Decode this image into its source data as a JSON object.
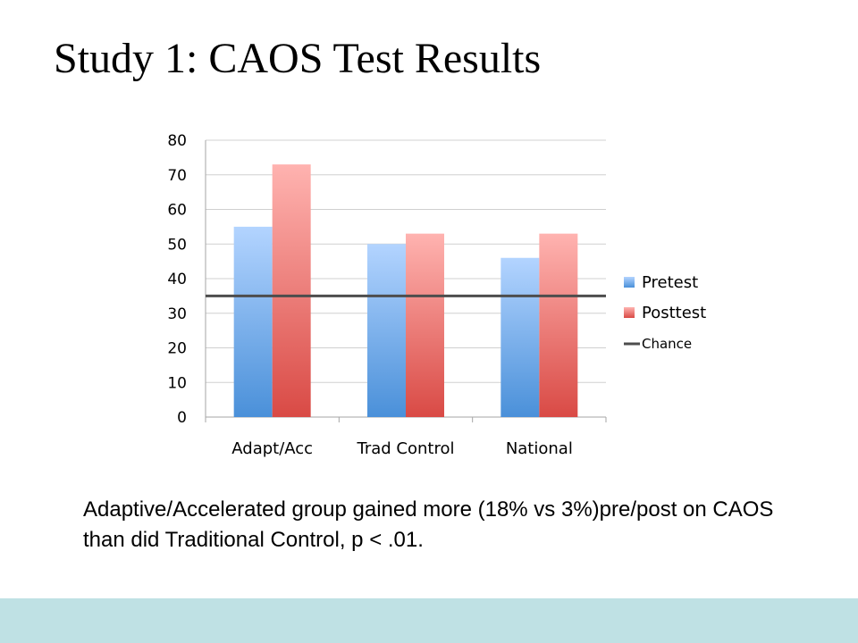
{
  "slide": {
    "title": "Study 1: CAOS Test Results",
    "caption": "Adaptive/Accelerated group gained more (18% vs 3%)pre/post on CAOS than did Traditional Control, p < .01.",
    "footer_color": "#bfe1e4"
  },
  "chart_data": {
    "type": "bar",
    "categories": [
      "Adapt/Acc",
      "Trad Control",
      "National"
    ],
    "series": [
      {
        "name": "Pretest",
        "values": [
          55,
          50,
          46
        ],
        "color_top": "#b3d4ff",
        "color_bottom": "#4a90d9"
      },
      {
        "name": "Posttest",
        "values": [
          73,
          53,
          53
        ],
        "color_top": "#ffb3b0",
        "color_bottom": "#d94a45"
      }
    ],
    "reference_line": {
      "name": "Chance",
      "value": 35,
      "color": "#4d4d4d"
    },
    "ylim": [
      0,
      80
    ],
    "yticks": [
      0,
      10,
      20,
      30,
      40,
      50,
      60,
      70,
      80
    ],
    "grid": true,
    "legend": "right",
    "title": "",
    "xlabel": "",
    "ylabel": ""
  }
}
